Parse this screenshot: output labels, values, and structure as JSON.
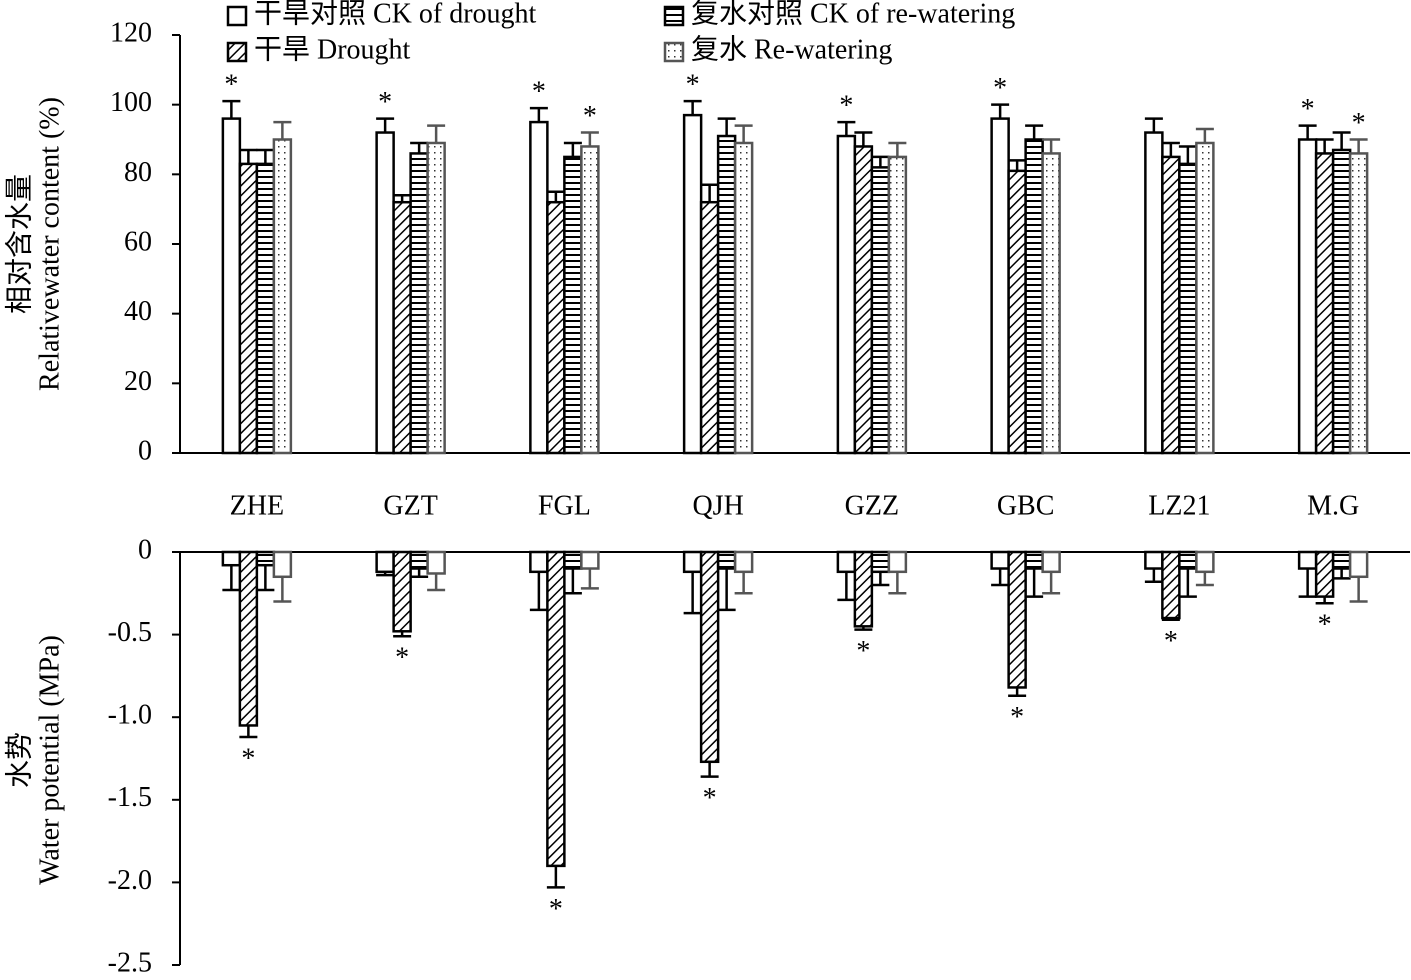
{
  "chart_data": [
    {
      "type": "bar",
      "ylabel_cn": "相对含水量",
      "ylabel": "Relativewater content (%)",
      "categories": [
        "ZHE",
        "GZT",
        "FGL",
        "QJH",
        "GZZ",
        "GBC",
        "LZ21",
        "M.G"
      ],
      "ylim": [
        0,
        120
      ],
      "yticks": [
        0,
        20,
        40,
        60,
        80,
        100,
        120
      ],
      "legend": "top",
      "series": [
        {
          "name": "干旱对照 CK of drought",
          "color": "#000000",
          "pattern": "none",
          "values": [
            96,
            92,
            95,
            97,
            91,
            96,
            92,
            90
          ],
          "errors": [
            5,
            4,
            4,
            4,
            4,
            4,
            4,
            4
          ],
          "significance": [
            "*",
            "*",
            "*",
            "*",
            "*",
            "*",
            null,
            "*"
          ]
        },
        {
          "name": "干旱 Drought",
          "color": "#000000",
          "pattern": "diagonal",
          "values": [
            83,
            72,
            72,
            72,
            88,
            81,
            85,
            86
          ],
          "errors": [
            4,
            2,
            3,
            5,
            4,
            3,
            4,
            4
          ],
          "significance": [
            null,
            null,
            null,
            null,
            null,
            null,
            null,
            null
          ]
        },
        {
          "name": "复水对照 CK of re-watering",
          "color": "#000000",
          "pattern": "horizontal",
          "values": [
            83,
            86,
            85,
            91,
            82,
            90,
            83,
            87
          ],
          "errors": [
            4,
            3,
            4,
            5,
            3,
            4,
            5,
            5
          ],
          "significance": [
            null,
            null,
            null,
            null,
            null,
            null,
            null,
            null
          ]
        },
        {
          "name": "复水 Re-watering",
          "color": "#555555",
          "pattern": "dots",
          "values": [
            90,
            89,
            88,
            89,
            85,
            86,
            89,
            86
          ],
          "errors": [
            5,
            5,
            4,
            5,
            4,
            4,
            4,
            4
          ],
          "significance": [
            null,
            null,
            "*",
            null,
            null,
            null,
            null,
            "*"
          ]
        }
      ]
    },
    {
      "type": "bar",
      "ylabel_cn": "水势",
      "ylabel": "Water potential (MPa)",
      "ylim": [
        -2.5,
        0
      ],
      "yticks": [
        0,
        -0.5,
        {
          "value": -1,
          "label": "-1.0"
        },
        -1.5,
        {
          "value": -2,
          "label": "-2.0"
        },
        -2.5
      ],
      "series": [
        {
          "color": "#000000",
          "pattern": "none",
          "values": [
            -0.08,
            -0.12,
            -0.12,
            -0.12,
            -0.12,
            -0.1,
            -0.1,
            -0.1
          ],
          "errors": [
            0.15,
            0.02,
            0.23,
            0.25,
            0.17,
            0.1,
            0.08,
            0.17
          ],
          "significance": [
            null,
            null,
            null,
            null,
            null,
            null,
            null,
            null
          ]
        },
        {
          "color": "#000000",
          "pattern": "diagonal",
          "values": [
            -1.05,
            -0.48,
            -1.9,
            -1.27,
            -0.45,
            -0.82,
            -0.4,
            -0.27
          ],
          "errors": [
            0.07,
            0.03,
            0.13,
            0.09,
            0.02,
            0.05,
            0.01,
            0.04
          ],
          "significance": [
            "*",
            "*",
            "*",
            "*",
            "*",
            "*",
            "*",
            "*"
          ]
        },
        {
          "color": "#000000",
          "pattern": "horizontal",
          "values": [
            -0.08,
            -0.1,
            -0.1,
            -0.1,
            -0.12,
            -0.1,
            -0.1,
            -0.1
          ],
          "errors": [
            0.15,
            0.05,
            0.15,
            0.25,
            0.08,
            0.17,
            0.17,
            0.06
          ],
          "significance": [
            null,
            null,
            null,
            null,
            null,
            null,
            null,
            null
          ]
        },
        {
          "color": "#555555",
          "pattern": "horizontal-none",
          "values": [
            -0.15,
            -0.13,
            -0.1,
            -0.12,
            -0.12,
            -0.12,
            -0.12,
            -0.15
          ],
          "errors": [
            0.15,
            0.1,
            0.12,
            0.13,
            0.13,
            0.13,
            0.08,
            0.15
          ],
          "significance": [
            null,
            null,
            null,
            null,
            null,
            null,
            null,
            null
          ]
        }
      ]
    }
  ]
}
